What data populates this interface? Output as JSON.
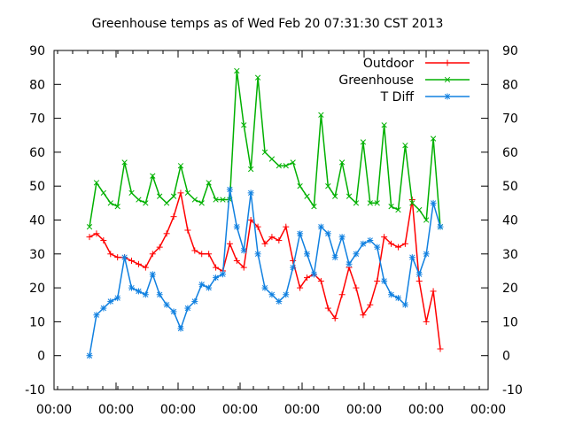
{
  "chart_data": {
    "type": "line",
    "title": "Greenhouse temps as of Wed Feb 20 07:31:30 CST 2013",
    "xlabel": "",
    "ylabel": "",
    "ylim": [
      -10,
      90
    ],
    "y_ticks": [
      -10,
      0,
      10,
      20,
      30,
      40,
      50,
      60,
      70,
      80,
      90
    ],
    "x_tick_labels": [
      "00:00",
      "00:00",
      "00:00",
      "00:00",
      "00:00",
      "00:00",
      "00:00",
      "00:00"
    ],
    "grid": false,
    "legend_position": "top-right",
    "x": [
      0.0,
      0.02,
      0.04,
      0.06,
      0.08,
      0.1,
      0.12,
      0.14,
      0.16,
      0.18,
      0.2,
      0.22,
      0.24,
      0.26,
      0.28,
      0.3,
      0.32,
      0.34,
      0.36,
      0.38,
      0.4,
      0.42,
      0.44,
      0.46,
      0.48,
      0.5,
      0.52,
      0.54,
      0.56,
      0.58,
      0.6,
      0.62,
      0.64,
      0.66,
      0.68,
      0.7,
      0.72,
      0.74,
      0.76,
      0.78,
      0.8,
      0.82,
      0.84,
      0.86,
      0.88,
      0.9,
      0.92,
      0.94,
      0.96,
      0.98,
      1.0
    ],
    "series": [
      {
        "name": "Outdoor",
        "color": "#ff0000",
        "marker": "+",
        "values": [
          35,
          36,
          34,
          30,
          29,
          29,
          28,
          27,
          26,
          30,
          32,
          36,
          41,
          48,
          37,
          31,
          30,
          30,
          26,
          25,
          33,
          28,
          26,
          40,
          38,
          33,
          35,
          34,
          38,
          28,
          20,
          23,
          24,
          22,
          14,
          11,
          18,
          26,
          20,
          12,
          15,
          22,
          35,
          33,
          32,
          33,
          46,
          22,
          10,
          19,
          2
        ]
      },
      {
        "name": "Greenhouse",
        "color": "#00b000",
        "marker": "x",
        "values": [
          38,
          51,
          48,
          45,
          44,
          57,
          48,
          46,
          45,
          53,
          47,
          45,
          47,
          56,
          48,
          46,
          45,
          51,
          46,
          46,
          46,
          84,
          68,
          55,
          82,
          60,
          58,
          56,
          56,
          57,
          50,
          47,
          44,
          71,
          50,
          47,
          57,
          47,
          45,
          63,
          45,
          45,
          68,
          44,
          43,
          62,
          45,
          43,
          40,
          64,
          38
        ]
      },
      {
        "name": "T Diff",
        "color": "#1080e0",
        "marker": "*",
        "values": [
          0,
          12,
          14,
          16,
          17,
          29,
          20,
          19,
          18,
          24,
          18,
          15,
          13,
          8,
          14,
          16,
          21,
          20,
          23,
          24,
          49,
          38,
          31,
          48,
          30,
          20,
          18,
          16,
          18,
          26,
          36,
          30,
          24,
          38,
          36,
          29,
          35,
          27,
          30,
          33,
          34,
          32,
          22,
          18,
          17,
          15,
          29,
          24,
          30,
          45,
          38
        ]
      }
    ]
  }
}
